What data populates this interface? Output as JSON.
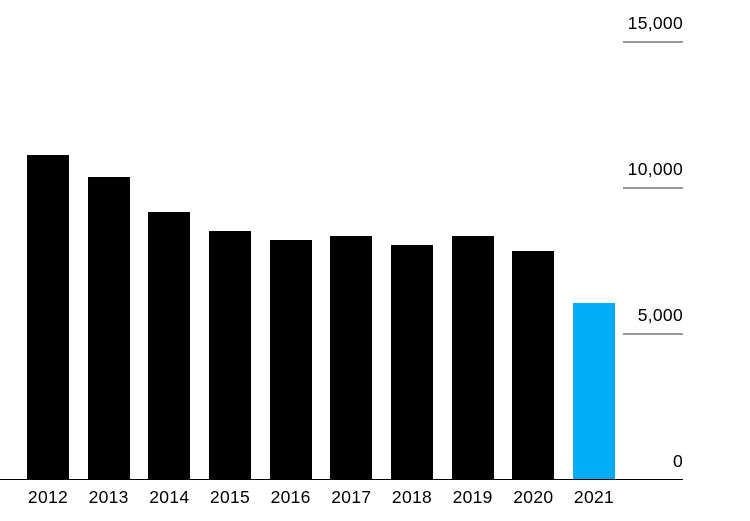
{
  "chart_data": {
    "type": "bar",
    "title": "",
    "xlabel": "",
    "ylabel": "",
    "categories": [
      "2012",
      "2013",
      "2014",
      "2015",
      "2016",
      "2017",
      "2018",
      "2019",
      "2020",
      "2021"
    ],
    "values": [
      11120,
      10370,
      9170,
      8510,
      8200,
      8340,
      8030,
      8340,
      7830,
      6040
    ],
    "ylim": [
      0,
      15000
    ],
    "yticks": [
      {
        "value": 15000,
        "label": "15,000"
      },
      {
        "value": 10000,
        "label": "10,000"
      },
      {
        "value": 5000,
        "label": "5,000"
      },
      {
        "value": 0,
        "label": "0"
      }
    ],
    "legend_position": "none",
    "grid": "short right-side tick rules only",
    "axis_side": "right",
    "highlight_category": "2021",
    "colors": {
      "bar": "#000000",
      "highlight": "#00acf4",
      "tick_line": "#999999",
      "axis_line": "#000000",
      "text": "#000000",
      "background": "#ffffff"
    }
  }
}
